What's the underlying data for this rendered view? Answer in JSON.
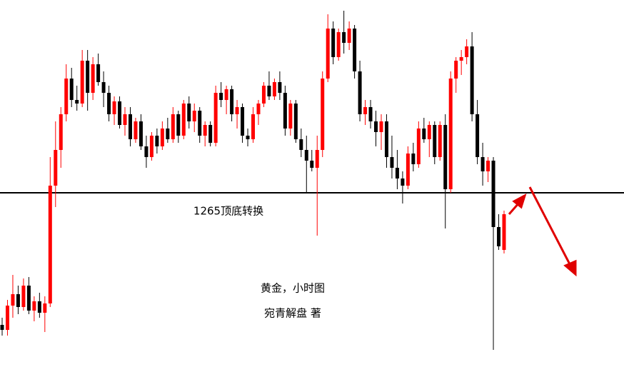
{
  "chart_data": {
    "type": "candlestick",
    "up_color": "#ff0000",
    "down_color": "#000000",
    "ylim": [
      1239.2,
      1292
    ],
    "level": 1265,
    "level_label": "1265顶底转换",
    "title": "黄金，小时图",
    "author": "宛青解盘 著",
    "open": [
      1246.5,
      1245.8,
      1249.2,
      1250.8,
      1249.0,
      1252.0,
      1248.5,
      1249.8,
      1248.2,
      1249.5,
      1266.0,
      1271.0,
      1276.0,
      1281.0,
      1278.0,
      1277.5,
      1283.5,
      1279.0,
      1283.0,
      1280.5,
      1279.0,
      1276.0,
      1277.8,
      1274.5,
      1276.0,
      1272.5,
      1275.0,
      1271.5,
      1270.0,
      1273.0,
      1271.5,
      1274.0,
      1272.5,
      1276.0,
      1273.0,
      1277.5,
      1275.0,
      1276.5,
      1273.0,
      1274.5,
      1272.0,
      1279.0,
      1278.0,
      1279.5,
      1276.0,
      1277.0,
      1273.0,
      1272.5,
      1276.0,
      1277.5,
      1280.0,
      1278.5,
      1280.5,
      1279.0,
      1274.0,
      1277.5,
      1272.5,
      1271.0,
      1269.5,
      1268.5,
      1271.0,
      1281.0,
      1288.0,
      1284.0,
      1287.5,
      1286.0,
      1288.0,
      1282.0,
      1276.0,
      1277.0,
      1275.0,
      1273.5,
      1275.0,
      1270.0,
      1268.5,
      1267.0,
      1266.0,
      1270.5,
      1269.0,
      1274.0,
      1272.5,
      1274.5,
      1270.0,
      1274.5,
      1265.5,
      1281.0,
      1283.5,
      1284.0,
      1285.5,
      1276.0,
      1270.0,
      1268.0,
      1269.5,
      1260.2,
      1257.0
    ],
    "high": [
      1247.5,
      1250.0,
      1253.5,
      1252.0,
      1253.0,
      1253.2,
      1250.5,
      1251.0,
      1250.5,
      1270.0,
      1275.0,
      1277.0,
      1283.0,
      1282.5,
      1280.0,
      1285.0,
      1285.0,
      1284.0,
      1284.5,
      1282.0,
      1280.0,
      1278.5,
      1278.5,
      1277.0,
      1277.0,
      1275.5,
      1276.0,
      1273.0,
      1273.5,
      1274.0,
      1275.0,
      1275.5,
      1277.0,
      1276.5,
      1278.0,
      1278.5,
      1277.5,
      1277.0,
      1275.0,
      1275.0,
      1280.0,
      1280.5,
      1280.0,
      1280.0,
      1278.0,
      1277.5,
      1274.0,
      1277.0,
      1278.0,
      1280.5,
      1282.0,
      1281.0,
      1282.0,
      1280.0,
      1278.0,
      1278.0,
      1274.0,
      1273.0,
      1271.0,
      1273.0,
      1282.0,
      1290.0,
      1289.0,
      1288.0,
      1290.5,
      1289.0,
      1288.5,
      1283.5,
      1278.0,
      1278.0,
      1276.5,
      1276.0,
      1276.0,
      1273.0,
      1271.0,
      1268.0,
      1271.5,
      1272.0,
      1275.0,
      1275.5,
      1275.0,
      1275.0,
      1275.0,
      1276.0,
      1282.0,
      1284.0,
      1285.0,
      1286.5,
      1287.5,
      1278.0,
      1272.0,
      1270.0,
      1270.0,
      1262.0,
      1262.5
    ],
    "low": [
      1245.0,
      1245.0,
      1247.5,
      1248.0,
      1248.5,
      1248.0,
      1247.0,
      1247.5,
      1245.5,
      1249.0,
      1263.0,
      1268.5,
      1275.0,
      1277.0,
      1276.5,
      1277.0,
      1276.5,
      1278.0,
      1280.0,
      1277.0,
      1275.0,
      1274.5,
      1274.0,
      1273.0,
      1271.5,
      1272.0,
      1271.0,
      1268.5,
      1269.5,
      1270.5,
      1271.0,
      1272.0,
      1272.0,
      1272.0,
      1272.5,
      1274.0,
      1273.5,
      1272.0,
      1271.5,
      1271.5,
      1271.5,
      1277.0,
      1276.0,
      1275.0,
      1274.0,
      1272.0,
      1271.5,
      1272.0,
      1274.5,
      1277.0,
      1278.0,
      1278.0,
      1278.0,
      1273.0,
      1273.0,
      1272.0,
      1270.0,
      1265.0,
      1268.0,
      1259.0,
      1270.0,
      1280.5,
      1283.0,
      1283.5,
      1284.5,
      1285.0,
      1281.0,
      1275.0,
      1274.5,
      1274.0,
      1271.5,
      1271.0,
      1268.5,
      1267.0,
      1265.5,
      1263.5,
      1265.5,
      1268.0,
      1268.5,
      1272.0,
      1270.0,
      1269.0,
      1269.5,
      1260.0,
      1265.0,
      1279.0,
      1281.5,
      1283.0,
      1275.0,
      1269.0,
      1266.0,
      1266.5,
      1243.0,
      1257.0,
      1256.5
    ],
    "close": [
      1245.8,
      1249.2,
      1250.8,
      1249.0,
      1252.0,
      1248.5,
      1249.8,
      1248.2,
      1249.5,
      1266.0,
      1271.0,
      1276.0,
      1281.0,
      1278.0,
      1277.5,
      1283.5,
      1279.0,
      1283.0,
      1280.5,
      1279.0,
      1276.0,
      1277.8,
      1274.5,
      1276.0,
      1272.5,
      1275.0,
      1271.5,
      1270.0,
      1273.0,
      1271.5,
      1274.0,
      1272.5,
      1276.0,
      1273.0,
      1277.5,
      1275.0,
      1276.5,
      1273.0,
      1274.5,
      1272.0,
      1279.0,
      1278.0,
      1279.5,
      1276.0,
      1277.0,
      1273.0,
      1272.5,
      1276.0,
      1277.5,
      1280.0,
      1278.5,
      1280.5,
      1279.0,
      1274.0,
      1277.5,
      1272.5,
      1271.0,
      1269.5,
      1268.5,
      1271.0,
      1281.0,
      1288.0,
      1284.0,
      1287.5,
      1286.0,
      1288.0,
      1282.0,
      1276.0,
      1277.0,
      1275.0,
      1273.5,
      1275.0,
      1270.0,
      1268.5,
      1267.0,
      1266.0,
      1270.5,
      1269.0,
      1274.0,
      1272.5,
      1274.5,
      1270.0,
      1274.5,
      1265.5,
      1281.0,
      1283.5,
      1284.0,
      1285.5,
      1276.0,
      1270.0,
      1268.0,
      1269.5,
      1260.2,
      1257.5,
      1262.0
    ]
  }
}
